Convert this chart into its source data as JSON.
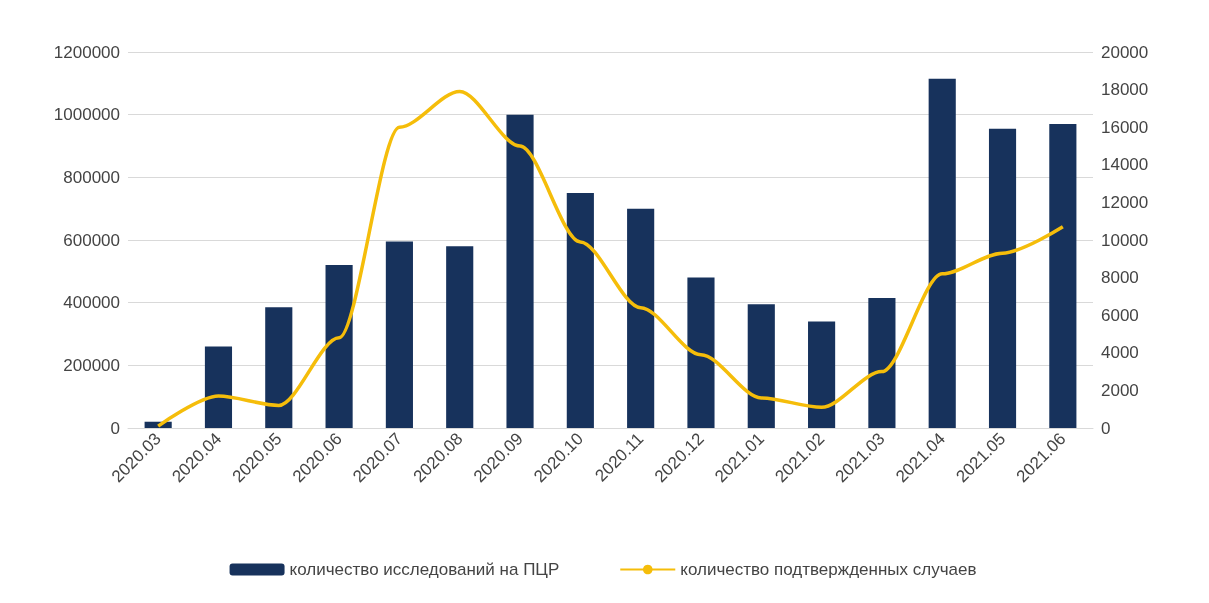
{
  "chart_data": {
    "type": "bar",
    "categories": [
      "2020.03",
      "2020.04",
      "2020.05",
      "2020.06",
      "2020.07",
      "2020.08",
      "2020.09",
      "2020.10",
      "2020.11",
      "2020.12",
      "2021.01",
      "2021.02",
      "2021.03",
      "2021.04",
      "2021.05",
      "2021.06"
    ],
    "series": [
      {
        "name": "количество исследований на ПЦР",
        "color": "#17325c",
        "values": [
          20000,
          260000,
          385000,
          520000,
          595000,
          580000,
          1000000,
          750000,
          700000,
          480000,
          395000,
          340000,
          415000,
          1115000,
          955000,
          970000
        ]
      },
      {
        "name": "количество подтвержденных случаев",
        "type": "line",
        "axis": "y2",
        "color": "#f5bd0a",
        "values": [
          100,
          1700,
          1200,
          4800,
          16000,
          17900,
          15000,
          9900,
          6400,
          3900,
          1600,
          1100,
          3000,
          8200,
          9300,
          10700
        ]
      }
    ],
    "ylim": [
      0,
      1200000
    ],
    "yticks": [
      0,
      200000,
      400000,
      600000,
      800000,
      1000000,
      1200000
    ],
    "y2lim": [
      0,
      20000
    ],
    "y2ticks": [
      0,
      2000,
      4000,
      6000,
      8000,
      10000,
      12000,
      14000,
      16000,
      18000,
      20000
    ],
    "grid": "y",
    "legend": "bottom",
    "marker": "none"
  }
}
